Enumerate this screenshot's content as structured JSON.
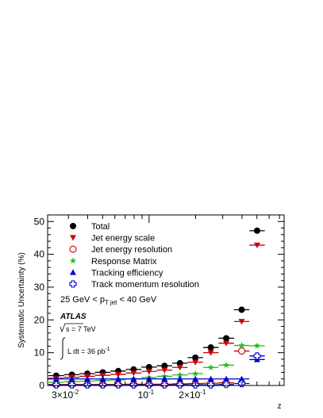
{
  "chart_data": {
    "type": "scatter",
    "xlabel": "z",
    "ylabel": "Systematic Uncertainty (%)",
    "x_scale": "log",
    "xlim": [
      0.022,
      0.75
    ],
    "ylim": [
      0,
      52
    ],
    "y_ticks": [
      0,
      10,
      20,
      30,
      40,
      50
    ],
    "x_tick_labels": [
      {
        "value": 0.03,
        "label": "3×10",
        "exp": "-2"
      },
      {
        "value": 0.1,
        "label": "10",
        "exp": "-1"
      },
      {
        "value": 0.2,
        "label": "2×10",
        "exp": "-1"
      }
    ],
    "legend_position": "top-left",
    "annotations": {
      "cut_prefix": "25 GeV < p",
      "cut_sub": "T jet",
      "cut_suffix": " < 40 GeV",
      "experiment": "ATLAS",
      "sqrt_s": "s = 7 TeV",
      "lumi_text": "L dt = 36 pb",
      "lumi_exp": "-1"
    },
    "bins": [
      {
        "x": 0.025,
        "lo": 0.0223,
        "hi": 0.0281
      },
      {
        "x": 0.0316,
        "lo": 0.0281,
        "hi": 0.0354
      },
      {
        "x": 0.0398,
        "lo": 0.0354,
        "hi": 0.0446
      },
      {
        "x": 0.0501,
        "lo": 0.0446,
        "hi": 0.0562
      },
      {
        "x": 0.0631,
        "lo": 0.0562,
        "hi": 0.0708
      },
      {
        "x": 0.0794,
        "lo": 0.0708,
        "hi": 0.0891
      },
      {
        "x": 0.1,
        "lo": 0.0891,
        "hi": 0.1122
      },
      {
        "x": 0.1259,
        "lo": 0.1122,
        "hi": 0.1413
      },
      {
        "x": 0.1585,
        "lo": 0.1413,
        "hi": 0.1778
      },
      {
        "x": 0.1995,
        "lo": 0.1778,
        "hi": 0.2239
      },
      {
        "x": 0.2512,
        "lo": 0.2239,
        "hi": 0.2818
      },
      {
        "x": 0.3162,
        "lo": 0.2818,
        "hi": 0.3548
      },
      {
        "x": 0.3981,
        "lo": 0.3548,
        "hi": 0.4467
      },
      {
        "x": 0.5012,
        "lo": 0.4467,
        "hi": 0.5623
      },
      {
        "x": 0.631,
        "lo": 0.5623,
        "hi": 0.708
      }
    ],
    "series": [
      {
        "name": "Total",
        "marker": "filled-circle",
        "color": "#000000",
        "values": [
          3.0,
          3.3,
          3.6,
          4.0,
          4.4,
          4.9,
          5.6,
          6.0,
          6.8,
          8.5,
          11.6,
          14.4,
          23.1,
          47.2,
          null
        ]
      },
      {
        "name": "Jet energy scale",
        "marker": "filled-triangle-down",
        "color": "#cc0000",
        "values": [
          2.2,
          2.5,
          2.8,
          3.1,
          3.4,
          3.8,
          4.3,
          4.7,
          5.5,
          7.1,
          10.0,
          12.9,
          19.5,
          42.8,
          null
        ]
      },
      {
        "name": "Jet energy resolution",
        "marker": "open-circle",
        "color": "#cc0000",
        "values": [
          0.3,
          0.3,
          0.3,
          0.3,
          0.3,
          0.4,
          0.4,
          0.4,
          0.5,
          0.6,
          0.7,
          0.8,
          10.5,
          null,
          null
        ]
      },
      {
        "name": "Response Matrix",
        "marker": "star",
        "color": "#22bb22",
        "values": [
          1.0,
          1.2,
          1.3,
          1.5,
          1.7,
          2.0,
          2.4,
          2.8,
          3.2,
          3.6,
          5.5,
          6.2,
          12.2,
          12.1,
          null
        ]
      },
      {
        "name": "Tracking efficiency",
        "marker": "filled-triangle-up",
        "color": "#0000cc",
        "values": [
          2.0,
          2.0,
          2.0,
          2.0,
          2.0,
          2.0,
          2.0,
          2.0,
          2.0,
          2.0,
          2.0,
          2.0,
          2.0,
          7.9,
          null
        ]
      },
      {
        "name": "Track momentum resolution",
        "marker": "open-cross",
        "color": "#0000cc",
        "values": [
          0.2,
          0.2,
          0.2,
          0.2,
          0.2,
          0.2,
          0.2,
          0.2,
          0.2,
          0.2,
          0.2,
          0.3,
          0.6,
          9.0,
          null
        ]
      }
    ]
  }
}
